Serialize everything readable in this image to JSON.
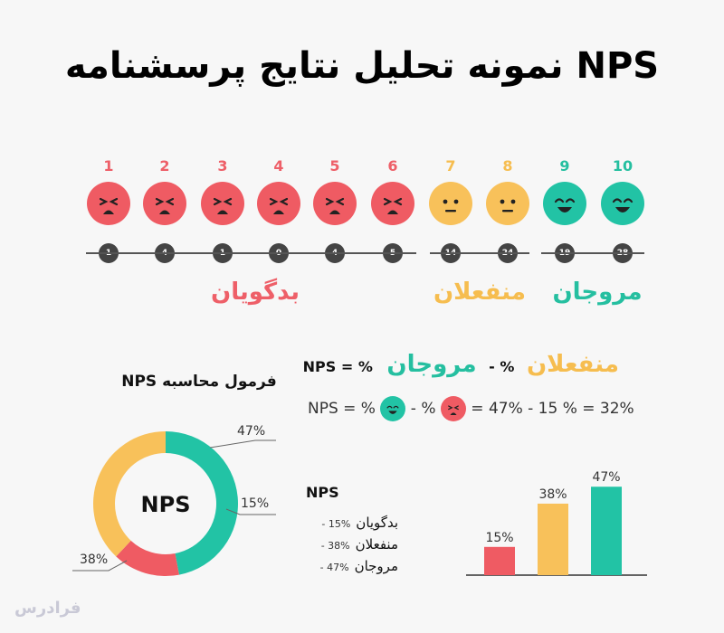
{
  "title": "نمونه تحلیل نتایج پرسشنامه NPS",
  "colors": {
    "detractor": "#ef5b63",
    "passive": "#f8c15a",
    "promoter": "#22c3a5",
    "detractor_text": "#ee5f68",
    "passive_text": "#f6bd4f",
    "promoter_text": "#25bfa0"
  },
  "scale": [
    {
      "score": "1",
      "count": "1",
      "group": "detractor"
    },
    {
      "score": "2",
      "count": "4",
      "group": "detractor"
    },
    {
      "score": "3",
      "count": "1",
      "group": "detractor"
    },
    {
      "score": "4",
      "count": "0",
      "group": "detractor"
    },
    {
      "score": "5",
      "count": "4",
      "group": "detractor"
    },
    {
      "score": "6",
      "count": "5",
      "group": "detractor"
    },
    {
      "score": "7",
      "count": "14",
      "group": "passive"
    },
    {
      "score": "8",
      "count": "24",
      "group": "passive"
    },
    {
      "score": "9",
      "count": "19",
      "group": "promoter"
    },
    {
      "score": "10",
      "count": "28",
      "group": "promoter"
    }
  ],
  "groups": {
    "detractors": "بدگویان",
    "passives": "منفعلان",
    "promoters": "مروجان"
  },
  "formula": {
    "heading": "فرمول محاسبه NPS",
    "line1": {
      "lhs": "NPS = %",
      "promoters": "مروجان",
      "minus": "- %",
      "passives": "منفعلان"
    },
    "line2": {
      "lhs": "NPS = %",
      "minus": "- %",
      "rhs": "= 47% - 15 % = 32%"
    }
  },
  "legend": {
    "title": "NPS",
    "items": [
      {
        "label": "بدگویان",
        "value": "- 15%"
      },
      {
        "label": "منفعلان",
        "value": "- 38%"
      },
      {
        "label": "مروجان",
        "value": "- 47%"
      }
    ]
  },
  "brand": "فرادرس",
  "chart_data": [
    {
      "type": "pie",
      "center_label": "NPS",
      "slices": [
        {
          "name": "مروجان",
          "value": 47,
          "label": "47%",
          "color": "#22c3a5"
        },
        {
          "name": "بدگویان",
          "value": 15,
          "label": "15%",
          "color": "#ef5b63"
        },
        {
          "name": "منفعلان",
          "value": 38,
          "label": "38%",
          "color": "#f8c15a"
        }
      ]
    },
    {
      "type": "bar",
      "categories": [
        "بدگویان",
        "منفعلان",
        "مروجان"
      ],
      "values": [
        15,
        38,
        47
      ],
      "labels": [
        "15%",
        "38%",
        "47%"
      ],
      "colors": [
        "#ef5b63",
        "#f8c15a",
        "#22c3a5"
      ],
      "ylim": [
        0,
        50
      ]
    }
  ]
}
